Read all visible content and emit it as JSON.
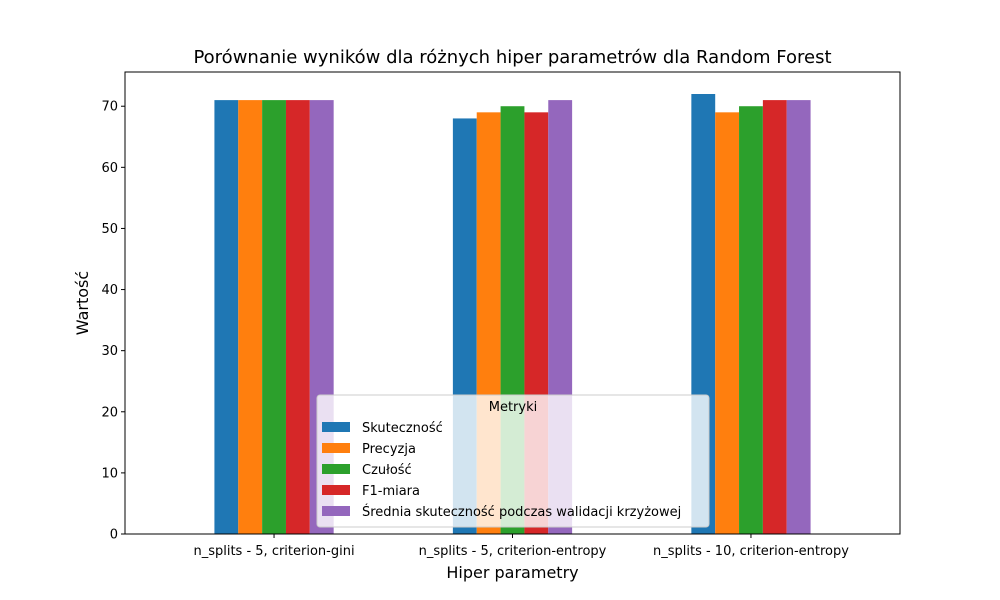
{
  "chart_data": {
    "type": "bar",
    "title": "Porównanie wyników dla różnych hiper parametrów dla Random Forest",
    "xlabel": "Hiper parametry",
    "ylabel": "Wartość",
    "categories": [
      "n_splits - 5, criterion-gini",
      "n_splits - 5, criterion-entropy",
      "n_splits - 10, criterion-entropy"
    ],
    "series": [
      {
        "name": "Skuteczność",
        "color": "#1f77b4",
        "values": [
          71,
          68,
          72
        ]
      },
      {
        "name": "Precyzja",
        "color": "#ff7f0e",
        "values": [
          71,
          69,
          69
        ]
      },
      {
        "name": "Czułość",
        "color": "#2ca02c",
        "values": [
          71,
          70,
          70
        ]
      },
      {
        "name": "F1-miara",
        "color": "#d62728",
        "values": [
          71,
          69,
          71
        ]
      },
      {
        "name": "Średnia skuteczność podczas walidacji krzyżowej",
        "color": "#9467bd",
        "values": [
          71,
          71,
          71
        ]
      }
    ],
    "ylim": [
      0,
      75.6
    ],
    "yticks": [
      0,
      10,
      20,
      30,
      40,
      50,
      60,
      70
    ],
    "legend": {
      "title": "Metryki",
      "placement": "bottom-center"
    },
    "grid": false
  }
}
